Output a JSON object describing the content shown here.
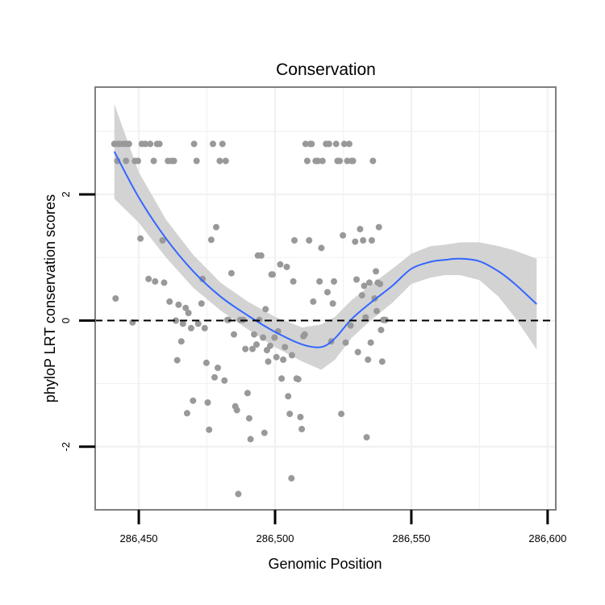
{
  "chart_data": {
    "type": "scatter",
    "title": "Conservation",
    "xlabel": "Genomic Position",
    "ylabel": "phyloP LRT conservation scores",
    "xlim": [
      286434,
      286603
    ],
    "ylim": [
      -3.0,
      3.7
    ],
    "x_ticks": [
      286450,
      286500,
      286550,
      286600
    ],
    "x_tick_labels": [
      "286,450",
      "286,500",
      "286,550",
      "286,600"
    ],
    "y_ticks": [
      -2,
      0,
      2
    ],
    "y_tick_labels": [
      "-2",
      "0",
      "2"
    ],
    "grid": true,
    "reference_line": {
      "y": 0,
      "style": "dashed"
    },
    "colors": {
      "points": "#999999",
      "smooth_line": "#3366ff",
      "confidence_band": "#d3d3d3",
      "panel_border": "#7f7f7f",
      "grid": "#f2f2f2"
    },
    "smooth": {
      "x": [
        286441,
        286450,
        286460,
        286470,
        286480,
        286490,
        286500,
        286510,
        286517,
        286522,
        286528,
        286535,
        286543,
        286550,
        286557,
        286562,
        286568,
        286575,
        286582,
        286588,
        286596
      ],
      "y": [
        2.68,
        1.95,
        1.3,
        0.78,
        0.38,
        0.08,
        -0.18,
        -0.38,
        -0.42,
        -0.28,
        0.02,
        0.28,
        0.55,
        0.82,
        0.93,
        0.96,
        0.98,
        0.94,
        0.78,
        0.58,
        0.26
      ],
      "lower": [
        1.93,
        1.55,
        1.0,
        0.52,
        0.16,
        -0.14,
        -0.42,
        -0.65,
        -0.78,
        -0.62,
        -0.28,
        0.0,
        0.28,
        0.58,
        0.68,
        0.72,
        0.72,
        0.64,
        0.38,
        0.05,
        -0.46
      ],
      "upper": [
        3.43,
        2.35,
        1.6,
        1.04,
        0.6,
        0.3,
        0.06,
        -0.11,
        -0.06,
        0.06,
        0.32,
        0.56,
        0.82,
        1.06,
        1.18,
        1.2,
        1.24,
        1.24,
        1.18,
        1.11,
        0.98
      ]
    },
    "points": [
      {
        "x": 286441.0,
        "y": 2.8
      },
      {
        "x": 286441.5,
        "y": 0.35
      },
      {
        "x": 286442.1,
        "y": 2.53
      },
      {
        "x": 286442.3,
        "y": 2.8
      },
      {
        "x": 286443.0,
        "y": 2.8
      },
      {
        "x": 286444.4,
        "y": 2.8
      },
      {
        "x": 286445.3,
        "y": 2.53
      },
      {
        "x": 286445.4,
        "y": 2.8
      },
      {
        "x": 286446.4,
        "y": 2.8
      },
      {
        "x": 286447.7,
        "y": -0.03
      },
      {
        "x": 286448.6,
        "y": 2.53
      },
      {
        "x": 286449.7,
        "y": 2.53
      },
      {
        "x": 286450.6,
        "y": 1.3
      },
      {
        "x": 286451.1,
        "y": 2.8
      },
      {
        "x": 286452.4,
        "y": 2.8
      },
      {
        "x": 286453.6,
        "y": 0.66
      },
      {
        "x": 286454.2,
        "y": 2.8
      },
      {
        "x": 286455.5,
        "y": 2.53
      },
      {
        "x": 286456.0,
        "y": 0.62
      },
      {
        "x": 286456.7,
        "y": 2.8
      },
      {
        "x": 286457.6,
        "y": 2.8
      },
      {
        "x": 286458.7,
        "y": 1.27
      },
      {
        "x": 286459.3,
        "y": 0.6
      },
      {
        "x": 286460.7,
        "y": 2.53
      },
      {
        "x": 286461.3,
        "y": 0.3
      },
      {
        "x": 286461.9,
        "y": 2.53
      },
      {
        "x": 286462.9,
        "y": 2.53
      },
      {
        "x": 286463.6,
        "y": 0.0
      },
      {
        "x": 286464.1,
        "y": -0.63
      },
      {
        "x": 286464.6,
        "y": 0.25
      },
      {
        "x": 286465.6,
        "y": -0.33
      },
      {
        "x": 286466.2,
        "y": -0.05
      },
      {
        "x": 286467.2,
        "y": 0.2
      },
      {
        "x": 286467.7,
        "y": -1.47
      },
      {
        "x": 286468.2,
        "y": 0.12
      },
      {
        "x": 286469.2,
        "y": -0.12
      },
      {
        "x": 286469.9,
        "y": -1.27
      },
      {
        "x": 286470.3,
        "y": 2.8
      },
      {
        "x": 286471.2,
        "y": 2.53
      },
      {
        "x": 286471.8,
        "y": -0.05
      },
      {
        "x": 286473.0,
        "y": 0.27
      },
      {
        "x": 286473.4,
        "y": 0.66
      },
      {
        "x": 286474.2,
        "y": -0.12
      },
      {
        "x": 286474.8,
        "y": -0.67
      },
      {
        "x": 286475.3,
        "y": -1.3
      },
      {
        "x": 286475.8,
        "y": -1.73
      },
      {
        "x": 286476.6,
        "y": 1.28
      },
      {
        "x": 286477.2,
        "y": 2.8
      },
      {
        "x": 286477.8,
        "y": -0.9
      },
      {
        "x": 286478.4,
        "y": 1.48
      },
      {
        "x": 286479.0,
        "y": -0.75
      },
      {
        "x": 286479.7,
        "y": 2.53
      },
      {
        "x": 286480.7,
        "y": 2.8
      },
      {
        "x": 286481.4,
        "y": -0.95
      },
      {
        "x": 286481.9,
        "y": 2.53
      },
      {
        "x": 286482.5,
        "y": 0.01
      },
      {
        "x": 286482.9,
        "y": 0.01
      },
      {
        "x": 286484.0,
        "y": 0.75
      },
      {
        "x": 286484.9,
        "y": -0.22
      },
      {
        "x": 286485.4,
        "y": -1.36
      },
      {
        "x": 286486.0,
        "y": -1.42
      },
      {
        "x": 286486.5,
        "y": -2.75
      },
      {
        "x": 286487.2,
        "y": 0.01
      },
      {
        "x": 286488.3,
        "y": 0.01
      },
      {
        "x": 286489.1,
        "y": -0.45
      },
      {
        "x": 286489.9,
        "y": -1.15
      },
      {
        "x": 286490.5,
        "y": -1.55
      },
      {
        "x": 286491.0,
        "y": -1.88
      },
      {
        "x": 286491.7,
        "y": -0.45
      },
      {
        "x": 286492.3,
        "y": -0.22
      },
      {
        "x": 286493.2,
        "y": -0.38
      },
      {
        "x": 286493.7,
        "y": 1.03
      },
      {
        "x": 286494.2,
        "y": 0.01
      },
      {
        "x": 286494.9,
        "y": 1.03
      },
      {
        "x": 286495.6,
        "y": -0.27
      },
      {
        "x": 286496.1,
        "y": -1.78
      },
      {
        "x": 286496.5,
        "y": 0.18
      },
      {
        "x": 286497.0,
        "y": -0.47
      },
      {
        "x": 286497.5,
        "y": -0.65
      },
      {
        "x": 286498.2,
        "y": -0.4
      },
      {
        "x": 286498.7,
        "y": 0.73
      },
      {
        "x": 286499.1,
        "y": 0.73
      },
      {
        "x": 286499.8,
        "y": -0.27
      },
      {
        "x": 286500.5,
        "y": -0.58
      },
      {
        "x": 286501.1,
        "y": -0.17
      },
      {
        "x": 286501.9,
        "y": 0.89
      },
      {
        "x": 286502.4,
        "y": -0.92
      },
      {
        "x": 286503.0,
        "y": -0.62
      },
      {
        "x": 286503.6,
        "y": -0.42
      },
      {
        "x": 286504.3,
        "y": 0.85
      },
      {
        "x": 286504.8,
        "y": -1.2
      },
      {
        "x": 286505.4,
        "y": -1.48
      },
      {
        "x": 286506.0,
        "y": -2.5
      },
      {
        "x": 286506.2,
        "y": -0.55
      },
      {
        "x": 286506.7,
        "y": 0.62
      },
      {
        "x": 286507.1,
        "y": 1.27
      },
      {
        "x": 286507.9,
        "y": -0.92
      },
      {
        "x": 286508.5,
        "y": -0.93
      },
      {
        "x": 286509.3,
        "y": -1.53
      },
      {
        "x": 286509.8,
        "y": -1.72
      },
      {
        "x": 286510.4,
        "y": -0.25
      },
      {
        "x": 286510.9,
        "y": -0.22
      },
      {
        "x": 286511.2,
        "y": 2.8
      },
      {
        "x": 286511.8,
        "y": 2.53
      },
      {
        "x": 286512.5,
        "y": 1.27
      },
      {
        "x": 286512.9,
        "y": 2.8
      },
      {
        "x": 286513.4,
        "y": 2.8
      },
      {
        "x": 286514.0,
        "y": 0.3
      },
      {
        "x": 286514.9,
        "y": 2.53
      },
      {
        "x": 286515.7,
        "y": 2.53
      },
      {
        "x": 286516.3,
        "y": 0.62
      },
      {
        "x": 286517.0,
        "y": 1.15
      },
      {
        "x": 286517.4,
        "y": 2.53
      },
      {
        "x": 286518.7,
        "y": 2.8
      },
      {
        "x": 286519.2,
        "y": 0.45
      },
      {
        "x": 286519.8,
        "y": 2.8
      },
      {
        "x": 286520.6,
        "y": -0.33
      },
      {
        "x": 286521.2,
        "y": 0.27
      },
      {
        "x": 286521.6,
        "y": 0.62
      },
      {
        "x": 286522.4,
        "y": 2.8
      },
      {
        "x": 286522.9,
        "y": 2.53
      },
      {
        "x": 286523.7,
        "y": 2.53
      },
      {
        "x": 286524.3,
        "y": -1.48
      },
      {
        "x": 286524.9,
        "y": 1.35
      },
      {
        "x": 286525.4,
        "y": 2.8
      },
      {
        "x": 286525.9,
        "y": -0.35
      },
      {
        "x": 286526.5,
        "y": 2.53
      },
      {
        "x": 286527.2,
        "y": 2.8
      },
      {
        "x": 286527.7,
        "y": -0.08
      },
      {
        "x": 286528.1,
        "y": 2.53
      },
      {
        "x": 286528.6,
        "y": 2.53
      },
      {
        "x": 286529.4,
        "y": 1.25
      },
      {
        "x": 286529.9,
        "y": 0.65
      },
      {
        "x": 286530.4,
        "y": -0.5
      },
      {
        "x": 286531.2,
        "y": 1.45
      },
      {
        "x": 286531.9,
        "y": 0.4
      },
      {
        "x": 286532.3,
        "y": 1.27
      },
      {
        "x": 286532.7,
        "y": 0.55
      },
      {
        "x": 286533.2,
        "y": 0.05
      },
      {
        "x": 286533.6,
        "y": -1.85
      },
      {
        "x": 286534.1,
        "y": -0.62
      },
      {
        "x": 286534.6,
        "y": 0.6
      },
      {
        "x": 286535.1,
        "y": -0.35
      },
      {
        "x": 286535.5,
        "y": 1.27
      },
      {
        "x": 286535.9,
        "y": 2.53
      },
      {
        "x": 286536.5,
        "y": 0.35
      },
      {
        "x": 286537.0,
        "y": 0.78
      },
      {
        "x": 286537.3,
        "y": 0.15
      },
      {
        "x": 286537.7,
        "y": 0.6
      },
      {
        "x": 286538.1,
        "y": 1.48
      },
      {
        "x": 286538.5,
        "y": 0.58
      },
      {
        "x": 286538.9,
        "y": -0.15
      },
      {
        "x": 286539.3,
        "y": -0.65
      },
      {
        "x": 286539.7,
        "y": 0.01
      },
      {
        "x": 286540.1,
        "y": 0.01
      },
      {
        "x": 286540.5,
        "y": 0.01
      }
    ]
  }
}
